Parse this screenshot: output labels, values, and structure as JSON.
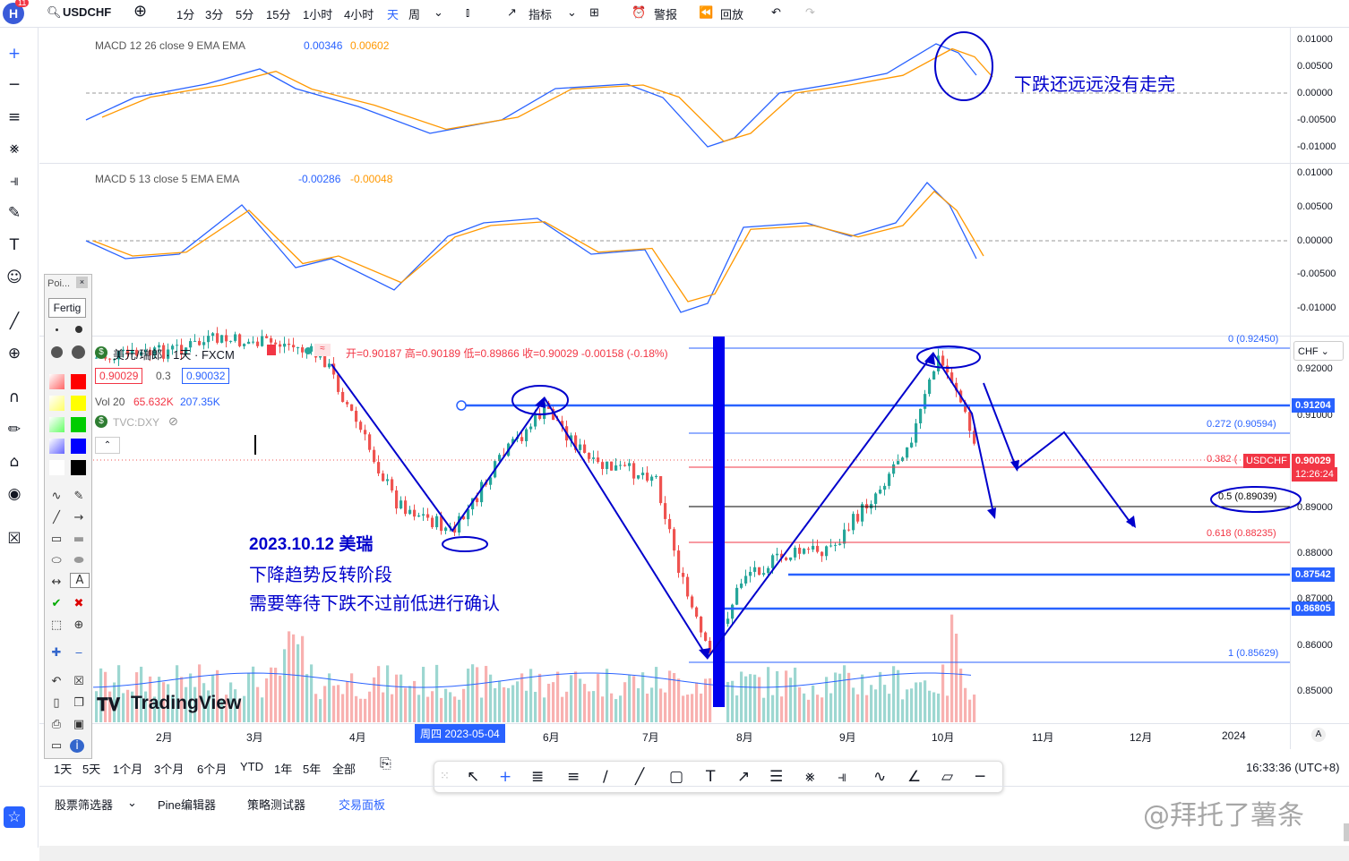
{
  "topbar": {
    "logo_badge": "11",
    "symbol": "USDCHF",
    "timeframes": [
      "1分",
      "3分",
      "5分",
      "15分",
      "1小时",
      "4小时",
      "天",
      "周"
    ],
    "active_timeframe": "天",
    "indicators_label": "指标",
    "alert_label": "警报",
    "replay_label": "回放"
  },
  "macd1": {
    "label": "MACD 12 26 close 9 EMA EMA",
    "v1": "0.00346",
    "v2": "0.00602",
    "axis": [
      "0.01000",
      "0.00500",
      "0.00000",
      "-0.00500",
      "-0.01000"
    ]
  },
  "macd2": {
    "label": "MACD 5 13 close 5 EMA EMA",
    "v1": "-0.00286",
    "v2": "-0.00048",
    "axis": [
      "0.01000",
      "0.00500",
      "0.00000",
      "-0.00500",
      "-0.01000"
    ]
  },
  "main": {
    "title": "美元/瑞郎 · 1天 · FXCM",
    "ohlc": "开=0.90187 高=0.90189 低=0.89866 收=0.90029 -0.00158 (-0.18%)",
    "bid": "0.90029",
    "spread": "0.3",
    "ask": "0.90032",
    "vol_label": "Vol 20",
    "vol_v1": "65.632K",
    "vol_v2": "207.35K",
    "dxy": "TVC:DXY",
    "currency": "CHF",
    "price_axis": [
      "0.92000",
      "0.91000",
      "0.89000",
      "0.88000",
      "0.87000",
      "0.86000",
      "0.85000"
    ],
    "price_tags": {
      "t1": "0.91204",
      "t2": "0.87542",
      "t3": "0.86805",
      "current_symbol": "USDCHF",
      "current": "0.90029",
      "countdown": "12:26:24"
    },
    "fib": {
      "f0": "0 (0.92450)",
      "f272": "0.272 (0.90594)",
      "f382": "0.382 (",
      "f5": "0.5 (0.89039)",
      "f618": "0.618 (0.88235)",
      "f1": "1 (0.85629)"
    },
    "months": [
      "2月",
      "3月",
      "4月",
      "周四 2023-05-04",
      "6月",
      "7月",
      "8月",
      "9月",
      "10月",
      "11月",
      "12月",
      "2024"
    ],
    "auto_label": "A",
    "watermark": "TradingView"
  },
  "annotations": {
    "line1": "下跌还远远没有走完",
    "line2": "2023.10.12 美瑞",
    "line3": "下降趋势反转阶段",
    "line4": "需要等待下跌不过前低进行确认"
  },
  "float_panel": {
    "title": "Poi...",
    "button": "Fertig"
  },
  "bottom": {
    "ranges": [
      "1天",
      "5天",
      "1个月",
      "3个月",
      "6个月",
      "YTD",
      "1年",
      "5年",
      "全部"
    ],
    "clock": "16:33:36 (UTC+8)"
  },
  "tabs": [
    "股票筛选器",
    "Pine编辑器",
    "策略测试器",
    "交易面板"
  ],
  "watermark_text": "@拜托了薯条",
  "colors": {
    "up": "#26a69a",
    "down": "#ef5350",
    "macd": "#2962ff",
    "signal": "#ff9800",
    "annot": "#0000cc",
    "tag_blue": "#2962ff",
    "tag_red": "#f23645"
  }
}
